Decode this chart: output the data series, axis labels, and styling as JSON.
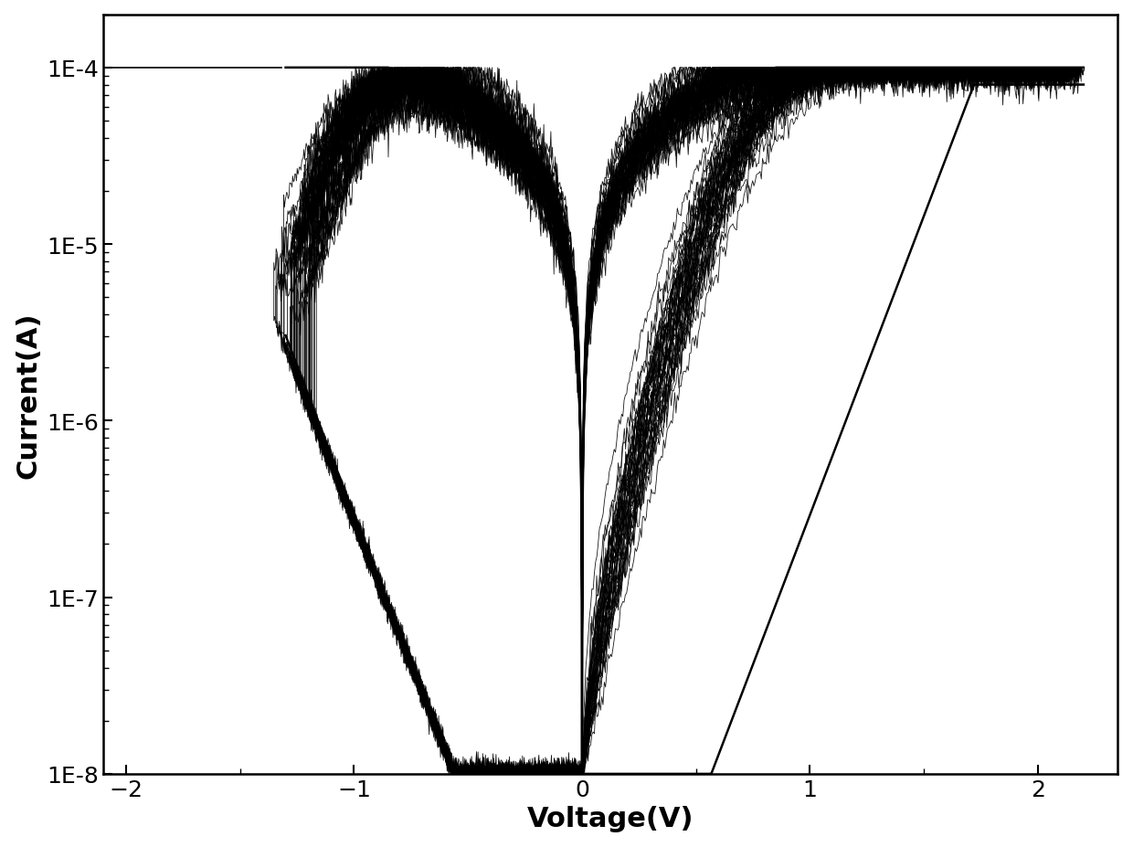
{
  "xlabel": "Voltage(V)",
  "ylabel": "Current(A)",
  "xlim": [
    -2.1,
    2.35
  ],
  "ylim": [
    1e-08,
    0.0002
  ],
  "xticks": [
    -2,
    -1,
    0,
    1,
    2
  ],
  "ytick_labels": [
    "1E-8",
    "1E-7",
    "1E-6",
    "1E-5",
    "1E-4"
  ],
  "ytick_values": [
    1e-08,
    1e-07,
    1e-06,
    1e-05,
    0.0001
  ],
  "line_color": "#000000",
  "background_color": "#ffffff",
  "n_cycles": 50,
  "compliance": 0.0001,
  "xlabel_fontsize": 22,
  "ylabel_fontsize": 22,
  "tick_fontsize": 18,
  "linewidth": 0.6
}
